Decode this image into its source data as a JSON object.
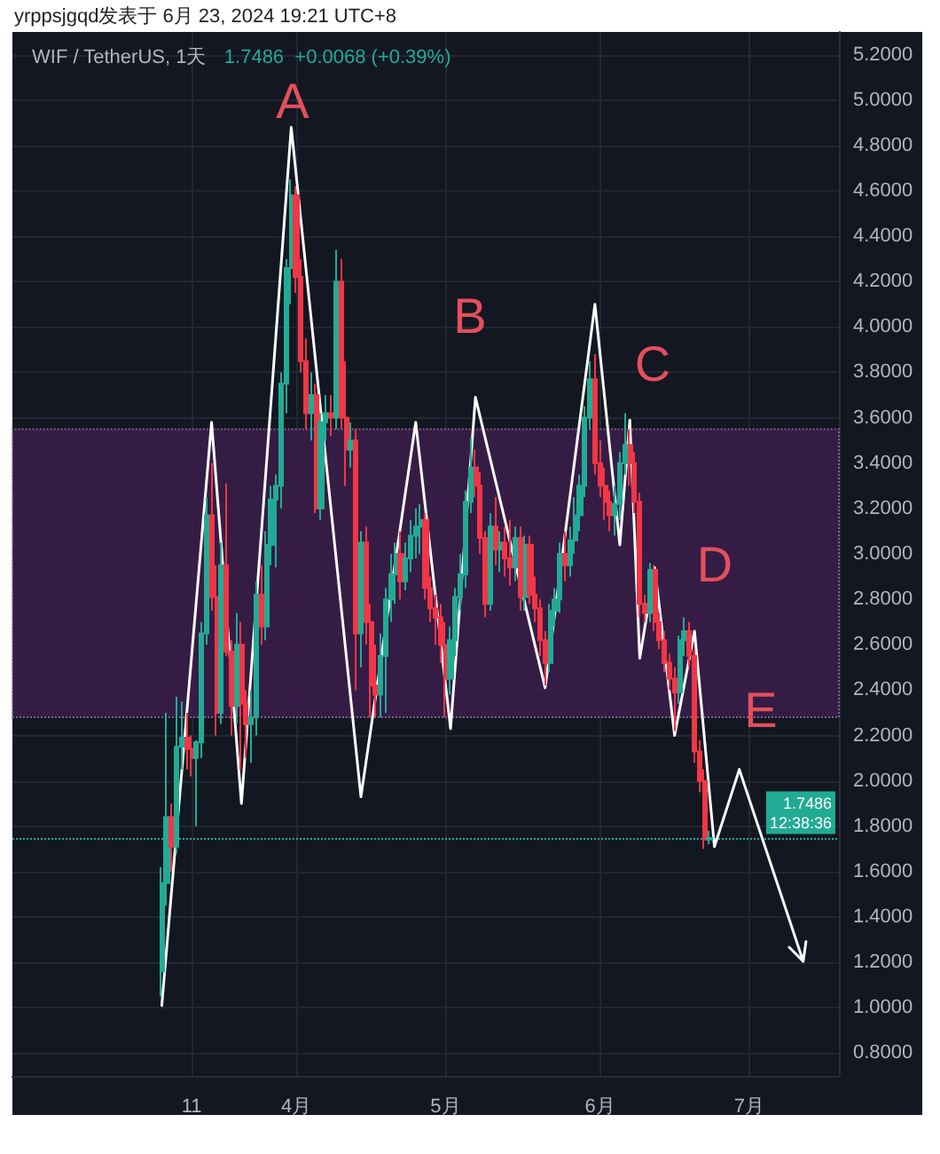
{
  "chart_data": {
    "type": "candlestick",
    "title": "WIF / TetherUS, 1天",
    "subtitle": "1.7486  +0.0068 (+0.39%)",
    "annotations": [
      "yrppsjgqd发表于 6月 23, 2024 19:21 UTC+8",
      "A",
      "B",
      "C",
      "D",
      "E"
    ],
    "x": [
      "2024-03-05",
      "2024-03-06",
      "2024-03-07",
      "2024-03-08",
      "2024-03-09",
      "2024-03-10",
      "2024-03-11",
      "2024-03-12",
      "2024-03-13",
      "2024-03-14",
      "2024-03-15",
      "2024-03-16",
      "2024-03-17",
      "2024-03-18",
      "2024-03-19",
      "2024-03-20",
      "2024-03-21",
      "2024-03-22",
      "2024-03-23",
      "2024-03-24",
      "2024-03-25",
      "2024-03-26",
      "2024-03-27",
      "2024-03-28",
      "2024-03-29",
      "2024-03-30",
      "2024-03-31",
      "2024-04-01",
      "2024-04-02",
      "2024-04-03",
      "2024-04-04",
      "2024-04-05",
      "2024-04-06",
      "2024-04-07",
      "2024-04-08",
      "2024-04-09",
      "2024-04-10",
      "2024-04-11",
      "2024-04-12",
      "2024-04-13",
      "2024-04-14",
      "2024-04-15",
      "2024-04-16",
      "2024-04-17",
      "2024-04-18",
      "2024-04-19",
      "2024-04-20",
      "2024-04-21",
      "2024-04-22",
      "2024-04-23",
      "2024-04-24",
      "2024-04-25",
      "2024-04-26",
      "2024-04-27",
      "2024-04-28",
      "2024-04-29",
      "2024-04-30",
      "2024-05-01",
      "2024-05-02",
      "2024-05-03",
      "2024-05-04",
      "2024-05-05",
      "2024-05-06",
      "2024-05-07",
      "2024-05-08",
      "2024-05-09",
      "2024-05-10",
      "2024-05-11",
      "2024-05-12",
      "2024-05-13",
      "2024-05-14",
      "2024-05-15",
      "2024-05-16",
      "2024-05-17",
      "2024-05-18",
      "2024-05-19",
      "2024-05-20",
      "2024-05-21",
      "2024-05-22",
      "2024-05-23",
      "2024-05-24",
      "2024-05-25",
      "2024-05-26",
      "2024-05-27",
      "2024-05-28",
      "2024-05-29",
      "2024-05-30",
      "2024-05-31",
      "2024-06-01",
      "2024-06-02",
      "2024-06-03",
      "2024-06-04",
      "2024-06-05",
      "2024-06-06",
      "2024-06-07",
      "2024-06-08",
      "2024-06-09",
      "2024-06-10",
      "2024-06-11",
      "2024-06-12",
      "2024-06-13",
      "2024-06-14",
      "2024-06-15",
      "2024-06-16",
      "2024-06-17",
      "2024-06-18",
      "2024-06-19",
      "2024-06-20",
      "2024-06-21",
      "2024-06-22",
      "2024-06-23"
    ],
    "ohlc": [
      [
        1.16,
        1.62,
        1.05,
        1.55
      ],
      [
        1.55,
        2.3,
        1.45,
        1.84
      ],
      [
        1.84,
        1.9,
        1.6,
        1.71
      ],
      [
        1.71,
        2.37,
        1.68,
        2.15
      ],
      [
        2.15,
        2.35,
        2.05,
        2.19
      ],
      [
        2.19,
        2.3,
        2.05,
        2.14
      ],
      [
        2.14,
        2.2,
        2.02,
        2.1
      ],
      [
        2.1,
        2.18,
        1.8,
        2.17
      ],
      [
        2.17,
        2.7,
        2.1,
        2.65
      ],
      [
        2.65,
        3.25,
        2.6,
        3.17
      ],
      [
        3.17,
        3.4,
        2.75,
        2.81
      ],
      [
        2.81,
        2.95,
        2.2,
        2.3
      ],
      [
        2.3,
        3.05,
        2.25,
        2.95
      ],
      [
        2.95,
        3.31,
        2.55,
        2.57
      ],
      [
        2.57,
        2.62,
        2.2,
        2.33
      ],
      [
        2.33,
        2.74,
        2.25,
        2.6
      ],
      [
        2.6,
        2.7,
        2.05,
        2.34
      ],
      [
        2.34,
        2.4,
        2.1,
        2.25
      ],
      [
        2.25,
        2.4,
        2.08,
        2.28
      ],
      [
        2.28,
        2.88,
        2.2,
        2.82
      ],
      [
        2.82,
        2.95,
        2.6,
        2.68
      ],
      [
        2.68,
        3.1,
        2.62,
        3.04
      ],
      [
        3.04,
        3.3,
        2.95,
        3.24
      ],
      [
        3.24,
        3.35,
        2.94,
        3.3
      ],
      [
        3.3,
        3.8,
        3.2,
        3.75
      ],
      [
        3.75,
        4.3,
        3.62,
        4.26
      ],
      [
        4.26,
        4.65,
        4.1,
        4.58
      ],
      [
        4.58,
        4.62,
        4.15,
        4.22
      ],
      [
        4.22,
        4.3,
        3.8,
        3.85
      ],
      [
        3.85,
        3.95,
        3.55,
        3.62
      ],
      [
        3.62,
        3.8,
        3.5,
        3.7
      ],
      [
        3.7,
        3.75,
        3.18,
        3.2
      ],
      [
        3.2,
        3.62,
        3.15,
        3.58
      ],
      [
        3.58,
        3.7,
        3.5,
        3.62
      ],
      [
        3.62,
        3.7,
        3.52,
        3.6
      ],
      [
        3.6,
        4.34,
        3.55,
        4.2
      ],
      [
        4.2,
        4.3,
        3.55,
        3.6
      ],
      [
        3.6,
        3.85,
        3.3,
        3.46
      ],
      [
        3.46,
        3.58,
        3.38,
        3.5
      ],
      [
        3.5,
        3.55,
        2.4,
        2.65
      ],
      [
        2.65,
        3.1,
        2.5,
        3.05
      ],
      [
        3.05,
        3.12,
        2.6,
        2.7
      ],
      [
        2.7,
        2.78,
        2.28,
        2.42
      ],
      [
        2.42,
        2.6,
        2.28,
        2.38
      ],
      [
        2.38,
        2.65,
        2.28,
        2.55
      ],
      [
        2.55,
        2.85,
        2.3,
        2.8
      ],
      [
        2.8,
        3.0,
        2.7,
        2.91
      ],
      [
        2.91,
        3.05,
        2.78,
        3.0
      ],
      [
        3.0,
        3.1,
        2.8,
        2.88
      ],
      [
        2.88,
        3.05,
        2.84,
        2.98
      ],
      [
        2.98,
        3.15,
        2.92,
        3.08
      ],
      [
        3.08,
        3.2,
        2.98,
        3.12
      ],
      [
        3.12,
        3.22,
        3.0,
        3.15
      ],
      [
        3.15,
        3.18,
        2.8,
        2.85
      ],
      [
        2.85,
        2.9,
        2.7,
        2.76
      ],
      [
        2.76,
        2.82,
        2.6,
        2.72
      ],
      [
        2.72,
        2.78,
        2.52,
        2.6
      ],
      [
        2.6,
        2.7,
        2.28,
        2.45
      ],
      [
        2.45,
        2.68,
        2.38,
        2.62
      ],
      [
        2.62,
        2.85,
        2.55,
        2.81
      ],
      [
        2.81,
        3.0,
        2.75,
        2.91
      ],
      [
        2.91,
        3.28,
        2.85,
        3.23
      ],
      [
        3.23,
        3.51,
        3.18,
        3.38
      ],
      [
        3.38,
        3.46,
        3.25,
        3.3
      ],
      [
        3.3,
        3.36,
        3.0,
        3.07
      ],
      [
        3.07,
        3.1,
        2.72,
        2.78
      ],
      [
        2.78,
        3.18,
        2.75,
        3.12
      ],
      [
        3.12,
        3.25,
        2.95,
        3.02
      ],
      [
        3.02,
        3.1,
        2.92,
        3.05
      ],
      [
        3.05,
        3.12,
        2.9,
        2.98
      ],
      [
        2.98,
        3.15,
        2.86,
        2.94
      ],
      [
        2.94,
        3.12,
        2.88,
        3.07
      ],
      [
        3.07,
        3.12,
        2.75,
        2.81
      ],
      [
        2.81,
        3.08,
        2.75,
        3.04
      ],
      [
        3.04,
        3.08,
        2.78,
        2.82
      ],
      [
        2.82,
        2.9,
        2.7,
        2.76
      ],
      [
        2.76,
        2.8,
        2.55,
        2.62
      ],
      [
        2.62,
        2.66,
        2.42,
        2.52
      ],
      [
        2.52,
        2.78,
        2.48,
        2.75
      ],
      [
        2.75,
        2.85,
        2.68,
        2.8
      ],
      [
        2.8,
        3.05,
        2.74,
        3.0
      ],
      [
        3.0,
        3.1,
        2.88,
        2.95
      ],
      [
        2.95,
        3.12,
        2.9,
        3.06
      ],
      [
        3.06,
        3.25,
        3.0,
        3.17
      ],
      [
        3.17,
        3.35,
        3.1,
        3.3
      ],
      [
        3.3,
        3.65,
        3.25,
        3.6
      ],
      [
        3.6,
        3.85,
        3.55,
        3.77
      ],
      [
        3.77,
        3.88,
        3.35,
        3.4
      ],
      [
        3.4,
        3.5,
        3.25,
        3.3
      ],
      [
        3.3,
        3.38,
        3.15,
        3.23
      ],
      [
        3.23,
        3.28,
        3.1,
        3.17
      ],
      [
        3.17,
        3.3,
        3.08,
        3.22
      ],
      [
        3.22,
        3.45,
        3.15,
        3.4
      ],
      [
        3.4,
        3.62,
        3.35,
        3.48
      ],
      [
        3.48,
        3.55,
        3.3,
        3.4
      ],
      [
        3.4,
        3.45,
        3.18,
        3.23
      ],
      [
        3.23,
        3.27,
        2.72,
        2.78
      ],
      [
        2.78,
        2.82,
        2.7,
        2.74
      ],
      [
        2.74,
        2.96,
        2.7,
        2.93
      ],
      [
        2.93,
        2.95,
        2.66,
        2.7
      ],
      [
        2.7,
        2.74,
        2.58,
        2.62
      ],
      [
        2.62,
        2.66,
        2.48,
        2.52
      ],
      [
        2.52,
        2.56,
        2.4,
        2.45
      ],
      [
        2.45,
        2.5,
        2.22,
        2.39
      ],
      [
        2.39,
        2.64,
        2.34,
        2.62
      ],
      [
        2.62,
        2.72,
        2.55,
        2.66
      ],
      [
        2.66,
        2.7,
        2.5,
        2.55
      ],
      [
        2.55,
        2.58,
        2.08,
        2.13
      ],
      [
        2.13,
        2.18,
        1.95,
        2.0
      ],
      [
        2.0,
        2.05,
        1.7,
        1.7418
      ],
      [
        1.7418,
        1.78,
        1.72,
        1.7486
      ]
    ],
    "series": [
      {
        "type": "line",
        "color": "#ffffff",
        "x": [
          "2024-03-05",
          "2024-03-15",
          "2024-03-21",
          "2024-03-31",
          "2024-04-14",
          "2024-04-25",
          "2024-05-02",
          "2024-05-07",
          "2024-05-21",
          "2024-05-31",
          "2024-06-05",
          "2024-06-07",
          "2024-06-09",
          "2024-06-12",
          "2024-06-16",
          "2024-06-20",
          "2024-06-24",
          "2024-06-29"
        ],
        "values": [
          1.01,
          3.58,
          1.9,
          4.88,
          1.93,
          3.58,
          2.23,
          3.69,
          2.41,
          4.1,
          3.04,
          3.59,
          2.54,
          2.94,
          2.2,
          2.66,
          1.71,
          2.05
        ]
      }
    ],
    "bands": [
      {
        "axis": "y",
        "from": 2.28,
        "to": 3.55,
        "color": "#3a1d49"
      }
    ],
    "ref_lines": [
      {
        "axis": "y",
        "value": 1.7486,
        "label": "1.7486\n12:38:36",
        "color": "#22ab94",
        "line_style": "dotted"
      }
    ],
    "xlim": [
      "2024-02-04",
      "2024-07-19"
    ],
    "xticks": [
      {
        "value": "2024-03-11",
        "label": "11"
      },
      {
        "value": "2024-04-01",
        "label": "4月"
      },
      {
        "value": "2024-05-01",
        "label": "5月"
      },
      {
        "value": "2024-06-01",
        "label": "6月"
      },
      {
        "value": "2024-07-01",
        "label": "7月"
      }
    ],
    "ylim": [
      0.7,
      5.3
    ],
    "yticks": [
      {
        "value": 0.8,
        "label": "0.8000"
      },
      {
        "value": 1.0,
        "label": "1.0000"
      },
      {
        "value": 1.2,
        "label": "1.2000"
      },
      {
        "value": 1.4,
        "label": "1.4000"
      },
      {
        "value": 1.6,
        "label": "1.6000"
      },
      {
        "value": 1.8,
        "label": "1.8000"
      },
      {
        "value": 2.0,
        "label": "2.0000"
      },
      {
        "value": 2.2,
        "label": "2.2000"
      },
      {
        "value": 2.4,
        "label": "2.4000"
      },
      {
        "value": 2.6,
        "label": "2.6000"
      },
      {
        "value": 2.8,
        "label": "2.8000"
      },
      {
        "value": 3.0,
        "label": "3.0000"
      },
      {
        "value": 3.2,
        "label": "3.2000"
      },
      {
        "value": 3.4,
        "label": "3.4000"
      },
      {
        "value": 3.6,
        "label": "3.6000"
      },
      {
        "value": 3.8,
        "label": "3.8000"
      },
      {
        "value": 4.0,
        "label": "4.0000"
      },
      {
        "value": 4.2,
        "label": "4.2000"
      },
      {
        "value": 4.4,
        "label": "4.4000"
      },
      {
        "value": 4.6,
        "label": "4.6000"
      },
      {
        "value": 4.8,
        "label": "4.8000"
      },
      {
        "value": 5.0,
        "label": "5.0000"
      },
      {
        "value": 5.2,
        "label": "5.2000"
      }
    ],
    "grid": true
  }
}
